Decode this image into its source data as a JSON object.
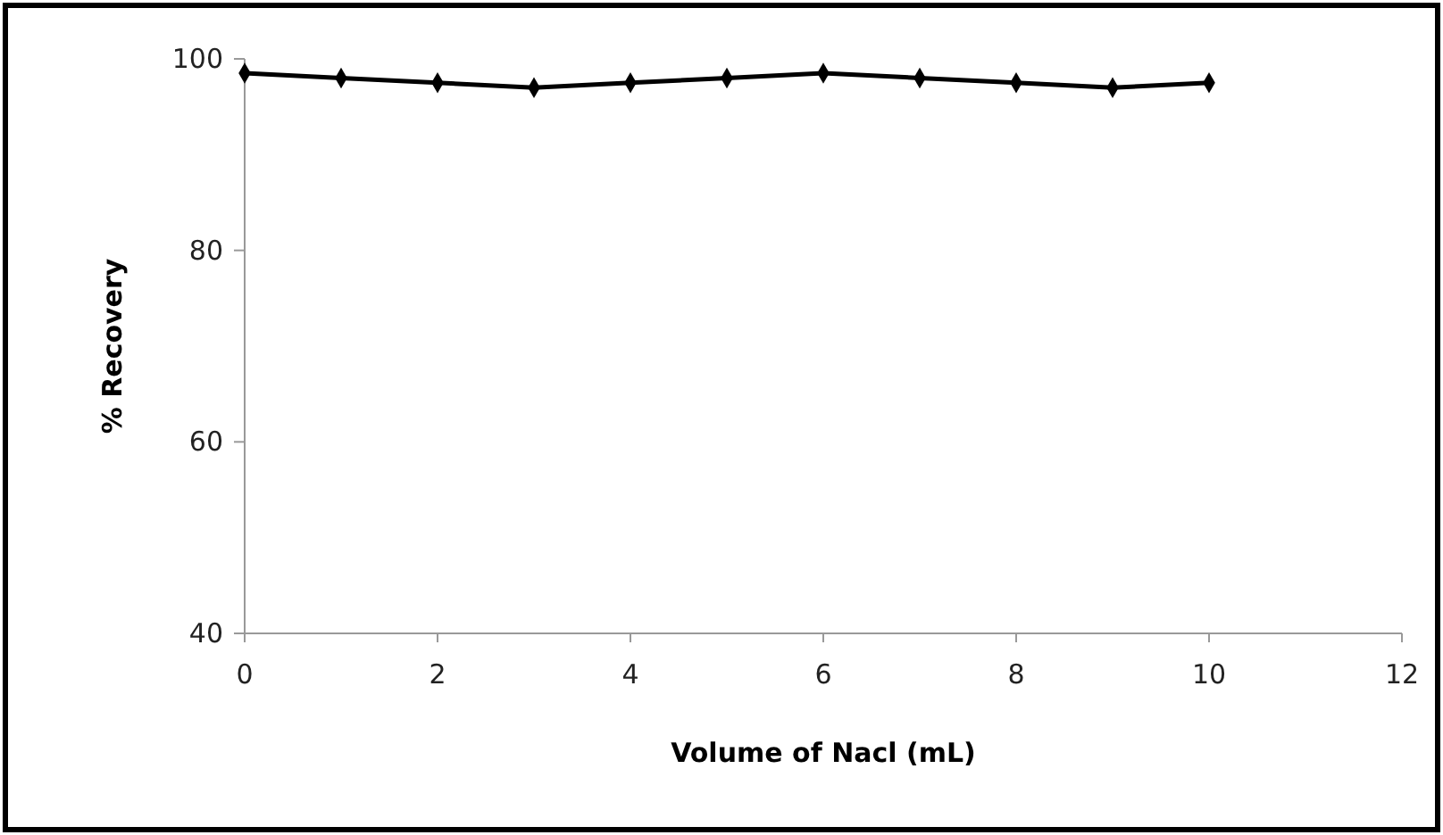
{
  "chart_data": {
    "type": "line",
    "xlabel": "Volume of Nacl (mL)",
    "ylabel": "% Recovery",
    "x": [
      0,
      1,
      2,
      3,
      4,
      5,
      6,
      7,
      8,
      9,
      10
    ],
    "series": [
      {
        "color": "#000000",
        "values": [
          98.5,
          98,
          97.5,
          97,
          97.5,
          98,
          98.5,
          98,
          97.5,
          97,
          97.5
        ]
      }
    ],
    "xlim": [
      0,
      12
    ],
    "xticks": [
      0,
      2,
      4,
      6,
      8,
      10,
      12
    ],
    "ylim": [
      40,
      100
    ],
    "yticks": [
      40,
      60,
      80,
      100
    ],
    "marker": "diamond",
    "line_style": "solid"
  }
}
